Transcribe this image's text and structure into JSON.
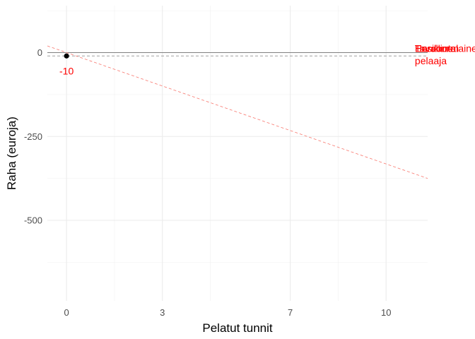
{
  "chart_data": {
    "type": "line",
    "title": "",
    "xlabel": "Pelatut tunnit",
    "ylabel": "Raha (euroja)",
    "xlim": [
      -0.6,
      11.3
    ],
    "ylim": [
      -740,
      140
    ],
    "x_ticks": [
      0,
      3,
      7,
      10
    ],
    "x_tick_labels": [
      "0",
      "3",
      "7",
      "10"
    ],
    "x_minor_ticks": [
      1.5,
      4.5,
      8.5
    ],
    "y_ticks": [
      0,
      -250,
      -500
    ],
    "y_tick_labels": [
      "0",
      "-250",
      "-500"
    ],
    "y_minor_ticks": [
      125,
      -125,
      -375,
      -625
    ],
    "grid": true,
    "reference_lines": [
      {
        "kind": "hline",
        "y": 0,
        "color": "#808080",
        "style": "solid"
      },
      {
        "kind": "hline",
        "y": -10,
        "color": "#a0a0a0",
        "style": "dashed"
      }
    ],
    "series": [
      {
        "line_style": "dashed",
        "color": "#f8766d",
        "x": [
          -0.6,
          11.3
        ],
        "y": [
          20,
          -375
        ]
      }
    ],
    "points": [
      {
        "x": 0,
        "y": -10,
        "label": "-10",
        "color": "#000000",
        "label_color": "#ff0000"
      }
    ],
    "annotations": [
      {
        "text": "Ensikertalainen",
        "color": "#ff0000",
        "x": 10.9,
        "y": 2
      },
      {
        "text": "Tavallinen",
        "color": "#ff0000",
        "x": 10.9,
        "y": 2
      },
      {
        "text": "Hardcore",
        "color": "#ff0000",
        "x": 10.9,
        "y": 2
      },
      {
        "text": "pelaaja",
        "color": "#ff0000",
        "x": 10.9,
        "y": -35
      }
    ]
  }
}
